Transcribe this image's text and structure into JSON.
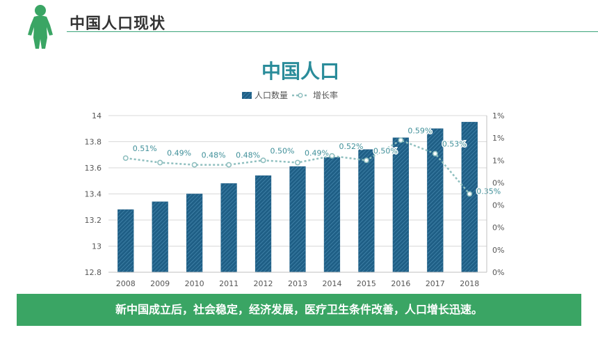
{
  "header": {
    "title": "中国人口现状"
  },
  "banner": {
    "text": "新中国成立后，社会稳定，经济发展，医疗卫生条件改善，人口增长迅速。"
  },
  "colors": {
    "accent": "#3aa564",
    "bar": "#1f5f86",
    "line": "#8fbfbf",
    "title": "#2a8c9a"
  },
  "chart_data": {
    "type": "bar",
    "title": "中国人口",
    "categories": [
      "2008",
      "2009",
      "2010",
      "2011",
      "2012",
      "2013",
      "2014",
      "2015",
      "2016",
      "2017",
      "2018"
    ],
    "series": [
      {
        "name": "人口数量",
        "type": "bar",
        "axis": "left",
        "values": [
          13.28,
          13.34,
          13.4,
          13.48,
          13.54,
          13.61,
          13.68,
          13.74,
          13.83,
          13.9,
          13.95
        ]
      },
      {
        "name": "增长率",
        "type": "line",
        "axis": "right",
        "values": [
          0.51,
          0.49,
          0.48,
          0.48,
          0.5,
          0.49,
          0.52,
          0.5,
          0.59,
          0.53,
          0.35
        ],
        "labels": [
          "0.51%",
          "0.49%",
          "0.48%",
          "0.48%",
          "0.50%",
          "0.49%",
          "0.52%",
          "0.50%",
          "0.59%",
          "0.53%",
          "0.35%"
        ]
      }
    ],
    "ylim": [
      12.8,
      14
    ],
    "yticks": [
      "14",
      "13.8",
      "13.6",
      "13.4",
      "13.2",
      "13",
      "12.8"
    ],
    "y2lim": [
      0,
      0.7
    ],
    "y2ticks": [
      "1%",
      "1%",
      "1%",
      "0%",
      "0%",
      "0%",
      "0%",
      "0%"
    ],
    "legend": "top-center",
    "grid": true
  }
}
